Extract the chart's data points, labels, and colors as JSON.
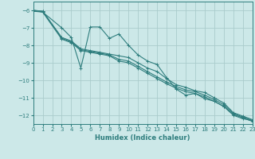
{
  "xlabel": "Humidex (Indice chaleur)",
  "xlim": [
    0,
    23
  ],
  "ylim": [
    -12.5,
    -5.5
  ],
  "yticks": [
    -12,
    -11,
    -10,
    -9,
    -8,
    -7,
    -6
  ],
  "xticks": [
    0,
    1,
    2,
    3,
    4,
    5,
    6,
    7,
    8,
    9,
    10,
    11,
    12,
    13,
    14,
    15,
    16,
    17,
    18,
    19,
    20,
    21,
    22,
    23
  ],
  "bg_color": "#cce8e8",
  "grid_color": "#aacccc",
  "line_color": "#2e7d7d",
  "line1_x": [
    0,
    1,
    3,
    4,
    5,
    6,
    7,
    8,
    9,
    10,
    11,
    12,
    13,
    14,
    15,
    16,
    17,
    18,
    19,
    20,
    21,
    22,
    23
  ],
  "line1_y": [
    -6.0,
    -6.1,
    -7.0,
    -7.55,
    -9.3,
    -6.95,
    -6.95,
    -7.6,
    -7.35,
    -8.0,
    -8.55,
    -8.9,
    -9.1,
    -9.85,
    -10.5,
    -10.85,
    -10.75,
    -11.05,
    -11.2,
    -11.5,
    -12.0,
    -12.2,
    -12.3
  ],
  "line2_x": [
    0,
    1,
    3,
    4,
    5,
    6,
    7,
    8,
    9,
    10,
    11,
    12,
    13,
    14,
    15,
    16,
    17,
    18,
    19,
    20,
    21,
    22,
    23
  ],
  "line2_y": [
    -6.0,
    -6.05,
    -7.55,
    -7.75,
    -8.2,
    -8.3,
    -8.4,
    -8.5,
    -8.6,
    -8.7,
    -9.0,
    -9.3,
    -9.5,
    -9.9,
    -10.25,
    -10.4,
    -10.6,
    -10.7,
    -11.0,
    -11.3,
    -11.85,
    -12.05,
    -12.25
  ],
  "line3_x": [
    0,
    1,
    3,
    4,
    5,
    6,
    7,
    8,
    9,
    10,
    11,
    12,
    13,
    14,
    15,
    16,
    17,
    18,
    19,
    20,
    21,
    22,
    23
  ],
  "line3_y": [
    -6.0,
    -6.05,
    -7.6,
    -7.8,
    -8.25,
    -8.35,
    -8.45,
    -8.55,
    -8.8,
    -8.9,
    -9.2,
    -9.5,
    -9.8,
    -10.1,
    -10.35,
    -10.55,
    -10.65,
    -10.85,
    -11.1,
    -11.4,
    -11.9,
    -12.1,
    -12.3
  ],
  "line4_x": [
    0,
    1,
    3,
    4,
    5,
    6,
    7,
    8,
    9,
    10,
    11,
    12,
    13,
    14,
    15,
    16,
    17,
    18,
    19,
    20,
    21,
    22,
    23
  ],
  "line4_y": [
    -6.05,
    -6.1,
    -7.65,
    -7.85,
    -8.3,
    -8.4,
    -8.5,
    -8.6,
    -8.9,
    -9.0,
    -9.3,
    -9.6,
    -9.9,
    -10.2,
    -10.45,
    -10.65,
    -10.75,
    -10.95,
    -11.2,
    -11.5,
    -11.95,
    -12.15,
    -12.35
  ],
  "tick_fontsize": 5.0,
  "xlabel_fontsize": 6.0,
  "lw": 0.8,
  "ms": 2.5,
  "mew": 0.7
}
